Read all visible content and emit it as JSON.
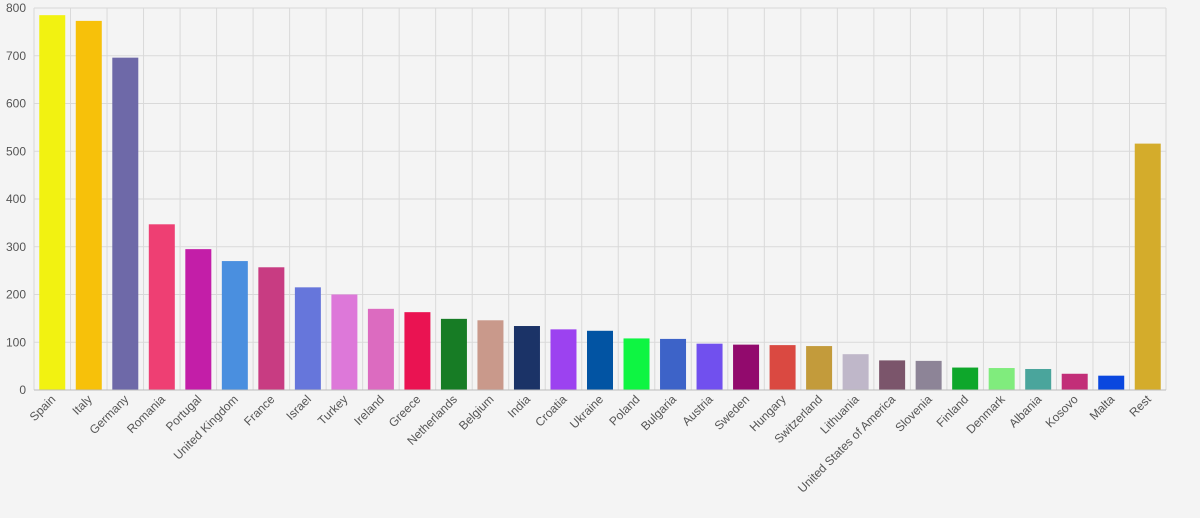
{
  "chart_data": {
    "type": "bar",
    "title": "",
    "xlabel": "",
    "ylabel": "",
    "ylim": [
      0,
      800
    ],
    "yticks": [
      0,
      100,
      200,
      300,
      400,
      500,
      600,
      700,
      800
    ],
    "grid": true,
    "legend": "none",
    "categories": [
      "Spain",
      "Italy",
      "Germany",
      "Romania",
      "Portugal",
      "United Kingdom",
      "France",
      "Israel",
      "Turkey",
      "Ireland",
      "Greece",
      "Netherlands",
      "Belgium",
      "India",
      "Croatia",
      "Ukraine",
      "Poland",
      "Bulgaria",
      "Austria",
      "Sweden",
      "Hungary",
      "Switzerland",
      "Lithuania",
      "United States of America",
      "Slovenia",
      "Finland",
      "Denmark",
      "Albania",
      "Kosovo",
      "Malta",
      "Rest"
    ],
    "values": [
      785,
      773,
      696,
      347,
      295,
      270,
      257,
      215,
      200,
      170,
      163,
      149,
      146,
      134,
      127,
      124,
      108,
      107,
      97,
      95,
      94,
      92,
      75,
      62,
      61,
      47,
      46,
      44,
      34,
      30,
      516
    ],
    "colors": [
      "#f2f211",
      "#f7c10a",
      "#6e69a8",
      "#ee3f73",
      "#c31ea8",
      "#4a8fdf",
      "#c83c82",
      "#6676db",
      "#dd78d9",
      "#dc6bc0",
      "#ea1352",
      "#177c25",
      "#c9998b",
      "#1b3367",
      "#9c42f0",
      "#0254a3",
      "#0ef542",
      "#3d63c8",
      "#7150ee",
      "#920a6d",
      "#da4941",
      "#c39b3b",
      "#bfb7c9",
      "#7b556b",
      "#8d8497",
      "#0ea72b",
      "#80ec7d",
      "#4aa59c",
      "#c22e78",
      "#0a47df",
      "#d4ac2b"
    ]
  }
}
